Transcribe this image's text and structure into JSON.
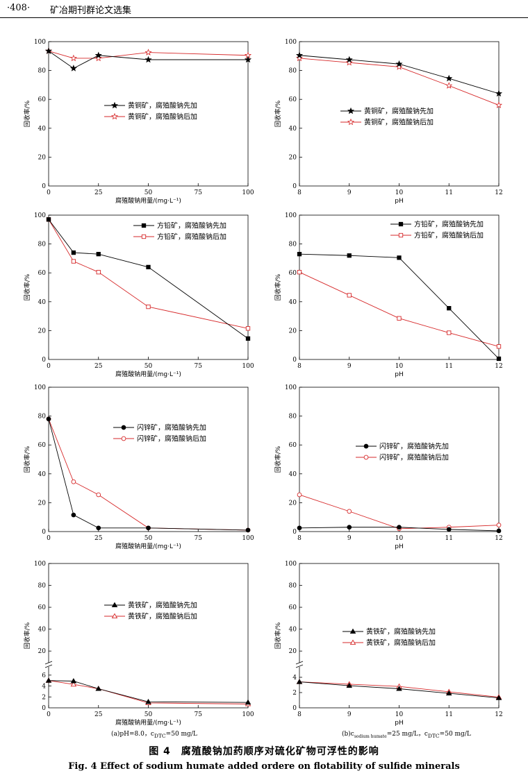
{
  "header": {
    "page": "·408·",
    "journal": "矿冶期刊群论文选集"
  },
  "legend_pre": "腐殖酸钠先加",
  "legend_post": "腐殖酸钠后加",
  "ylabel": "回收率/%",
  "xlabel_dose": "腐殖酸钠用量/(mg·L⁻¹)",
  "xlabel_ph": "pH",
  "sub_a_text": "(a)pH=8.0，c",
  "sub_a_sub": "DTC",
  "sub_a_tail": "=50 mg/L",
  "sub_b_text": "(b)c",
  "sub_b_sub1": "sodium humate",
  "sub_b_mid": "=25 mg/L，c",
  "sub_b_sub2": "DTC",
  "sub_b_tail": "=50 mg/L",
  "caption_cn": "图 4　腐殖酸钠加药顺序对硫化矿物可浮性的影响",
  "caption_en": "Fig. 4    Effect of sodium humate added ordere on flotability of sulfide minerals",
  "colors": {
    "pre": "#000000",
    "post": "#d62728"
  },
  "chart_data": [
    {
      "type": "line",
      "mineral": "黄铜矿",
      "marker": "star",
      "x": [
        0,
        12.5,
        25,
        50,
        100
      ],
      "xticks": [
        0,
        25,
        50,
        75,
        100
      ],
      "ylim": [
        0,
        100
      ],
      "yticks": [
        20,
        40,
        60,
        80,
        100
      ],
      "series": [
        {
          "name": "黄铜矿，腐殖酸钠先加",
          "values": [
            93.5,
            81.5,
            90.5,
            87.5,
            87.5
          ]
        },
        {
          "name": "黄铜矿，腐殖酸钠后加",
          "values": [
            93.5,
            88.5,
            88.5,
            92.5,
            90.5
          ]
        }
      ],
      "legend_pos": "center"
    },
    {
      "type": "line",
      "mineral": "黄铜矿",
      "marker": "star",
      "x": [
        8,
        9,
        10,
        11,
        12
      ],
      "xticks": [
        8,
        9,
        10,
        11,
        12
      ],
      "ylim": [
        0,
        100
      ],
      "yticks": [
        20,
        40,
        60,
        80,
        100
      ],
      "series": [
        {
          "name": "黄铜矿，腐殖酸钠先加",
          "values": [
            90.5,
            87.5,
            84.5,
            74.5,
            64
          ]
        },
        {
          "name": "黄铜矿，腐殖酸钠后加",
          "values": [
            88.5,
            85.5,
            82.5,
            69.5,
            56
          ]
        }
      ],
      "legend_pos": "center"
    },
    {
      "type": "line",
      "mineral": "方铅矿",
      "marker": "square",
      "x": [
        0,
        12.5,
        25,
        50,
        100
      ],
      "xticks": [
        0,
        25,
        50,
        75,
        100
      ],
      "ylim": [
        0,
        100
      ],
      "yticks": [
        20,
        40,
        60,
        80,
        100
      ],
      "series": [
        {
          "name": "方铅矿，腐殖酸钠先加",
          "values": [
            97,
            74,
            73,
            64,
            14.5
          ]
        },
        {
          "name": "方铅矿，腐殖酸钠后加",
          "values": [
            97,
            68,
            60.5,
            36.5,
            21.5
          ]
        }
      ],
      "legend_pos": "top-right"
    },
    {
      "type": "line",
      "mineral": "方铅矿",
      "marker": "square",
      "x": [
        8,
        9,
        10,
        11,
        12
      ],
      "xticks": [
        8,
        9,
        10,
        11,
        12
      ],
      "ylim": [
        0,
        100
      ],
      "yticks": [
        20,
        40,
        60,
        80,
        100
      ],
      "series": [
        {
          "name": "方铅矿，腐殖酸钠先加",
          "values": [
            73,
            72,
            70.5,
            35.5,
            0.5
          ]
        },
        {
          "name": "方铅矿，腐殖酸钠后加",
          "values": [
            60.5,
            44.5,
            28.5,
            18.5,
            9
          ]
        }
      ],
      "legend_pos": "top-right"
    },
    {
      "type": "line",
      "mineral": "闪锌矿",
      "marker": "circle",
      "x": [
        0,
        12.5,
        25,
        50,
        100
      ],
      "xticks": [
        0,
        25,
        50,
        75,
        100
      ],
      "ylim": [
        0,
        100
      ],
      "yticks": [
        20,
        40,
        60,
        80,
        100
      ],
      "series": [
        {
          "name": "闪锌矿，腐殖酸钠先加",
          "values": [
            78,
            11.5,
            2.5,
            2.5,
            1
          ]
        },
        {
          "name": "闪锌矿，腐殖酸钠后加",
          "values": [
            78,
            34.5,
            25.5,
            2.5,
            1
          ]
        }
      ],
      "legend_pos": "top-right"
    },
    {
      "type": "line",
      "mineral": "闪锌矿",
      "marker": "circle",
      "x": [
        8,
        9,
        10,
        11,
        12
      ],
      "xticks": [
        8,
        9,
        10,
        11,
        12
      ],
      "ylim": [
        0,
        100
      ],
      "yticks": [
        20,
        40,
        60,
        80,
        100
      ],
      "series": [
        {
          "name": "闪锌矿，腐殖酸钠先加",
          "values": [
            2.5,
            3,
            3,
            1.5,
            0.5
          ]
        },
        {
          "name": "闪锌矿，腐殖酸钠后加",
          "values": [
            25.5,
            14,
            2,
            3,
            4.5
          ]
        }
      ],
      "legend_pos": "center"
    },
    {
      "type": "line",
      "mineral": "黄铁矿",
      "marker": "triangle",
      "broken_axis": true,
      "x": [
        0,
        12.5,
        25,
        50,
        100
      ],
      "xticks": [
        0,
        25,
        50,
        75,
        100
      ],
      "ylim": [
        0,
        100
      ],
      "yticks_low": [
        2,
        4,
        6
      ],
      "yticks_high": [
        20,
        40,
        60,
        80,
        100
      ],
      "series": [
        {
          "name": "黄铁矿，腐殖酸钠先加",
          "values": [
            5,
            4.9,
            3.5,
            1.1,
            1
          ]
        },
        {
          "name": "黄铁矿，腐殖酸钠后加",
          "values": [
            5,
            4.3,
            3.5,
            0.9,
            0.7
          ]
        }
      ],
      "legend_pos": "center"
    },
    {
      "type": "line",
      "mineral": "黄铁矿",
      "marker": "triangle",
      "broken_axis": true,
      "x": [
        8,
        9,
        10,
        11,
        12
      ],
      "xticks": [
        8,
        9,
        10,
        11,
        12
      ],
      "ylim": [
        0,
        100
      ],
      "yticks_low": [
        2,
        4
      ],
      "yticks_high": [
        20,
        40,
        60,
        80,
        100
      ],
      "series": [
        {
          "name": "黄铁矿，腐殖酸钠先加",
          "values": [
            3.4,
            2.9,
            2.5,
            1.9,
            1.3
          ]
        },
        {
          "name": "黄铁矿，腐殖酸钠后加",
          "values": [
            3.4,
            3.1,
            2.8,
            2.1,
            1.4
          ]
        }
      ],
      "legend_pos": "center"
    }
  ]
}
